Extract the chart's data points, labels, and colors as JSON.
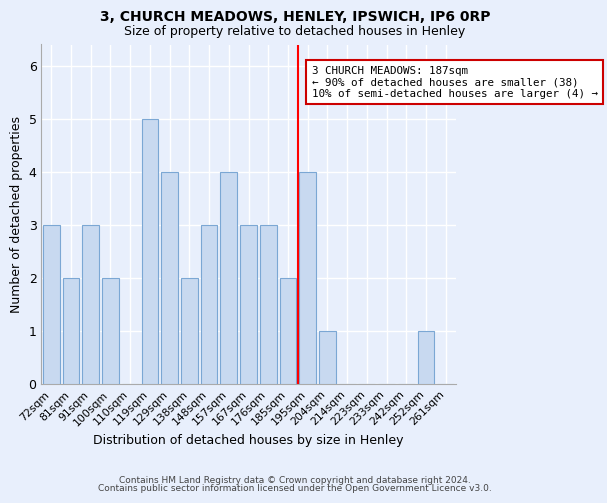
{
  "title": "3, CHURCH MEADOWS, HENLEY, IPSWICH, IP6 0RP",
  "subtitle": "Size of property relative to detached houses in Henley",
  "xlabel": "Distribution of detached houses by size in Henley",
  "ylabel": "Number of detached properties",
  "categories": [
    "72sqm",
    "81sqm",
    "91sqm",
    "100sqm",
    "110sqm",
    "119sqm",
    "129sqm",
    "138sqm",
    "148sqm",
    "157sqm",
    "167sqm",
    "176sqm",
    "185sqm",
    "195sqm",
    "204sqm",
    "214sqm",
    "223sqm",
    "233sqm",
    "242sqm",
    "252sqm",
    "261sqm"
  ],
  "values": [
    3,
    2,
    3,
    2,
    0,
    5,
    4,
    2,
    3,
    4,
    3,
    3,
    2,
    4,
    1,
    0,
    0,
    0,
    0,
    1,
    0
  ],
  "bar_color": "#c8d9f0",
  "bar_edge_color": "#7ba7d4",
  "bar_width": 0.85,
  "reference_line_x": 12.5,
  "annotation_title": "3 CHURCH MEADOWS: 187sqm",
  "annotation_line2": "← 90% of detached houses are smaller (38)",
  "annotation_line3": "10% of semi-detached houses are larger (4) →",
  "annotation_box_color": "#ffffff",
  "annotation_box_edge_color": "#cc0000",
  "ylim": [
    0,
    6.4
  ],
  "yticks": [
    0,
    1,
    2,
    3,
    4,
    5,
    6
  ],
  "background_color": "#e8effc",
  "plot_bg_color": "#e8effc",
  "grid_color": "#ffffff",
  "footer_line1": "Contains HM Land Registry data © Crown copyright and database right 2024.",
  "footer_line2": "Contains public sector information licensed under the Open Government Licence v3.0."
}
